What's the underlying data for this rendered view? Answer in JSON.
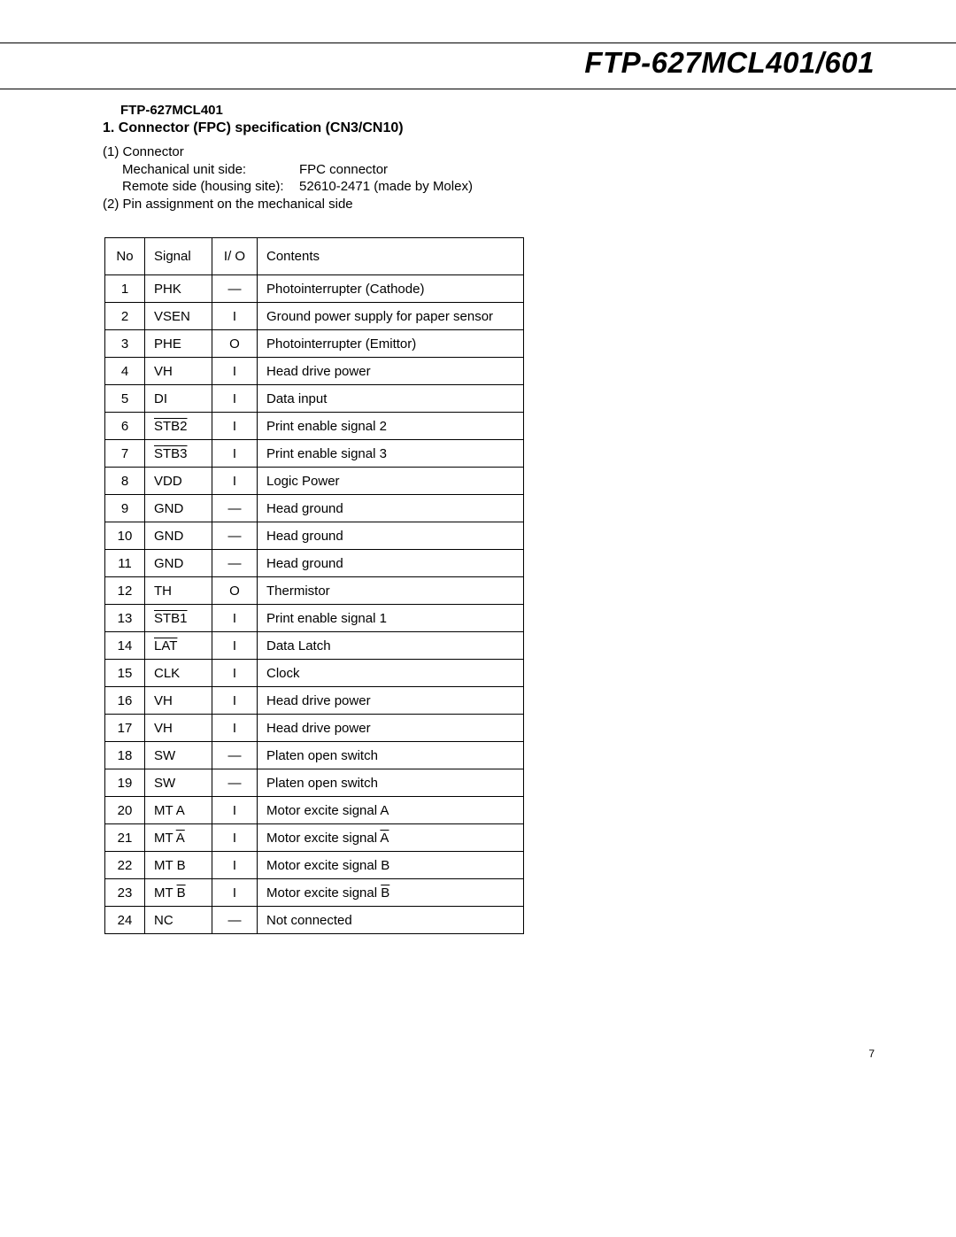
{
  "doc_title": "FTP-627MCL401/601",
  "model_label": "FTP-627MCL401",
  "section_title": "1. Connector (FPC) specification (CN3/CN10)",
  "connector_block": {
    "line1": "(1) Connector",
    "mech_label": "Mechanical unit side:",
    "mech_value": "FPC connector",
    "remote_label": "Remote side (housing site):",
    "remote_value": "52610-2471 (made by Molex)",
    "line2": "(2) Pin assignment on the mechanical side"
  },
  "table": {
    "headers": {
      "no": "No",
      "signal": "Signal",
      "io": "I/ O",
      "contents": "Contents"
    },
    "rows": [
      {
        "no": "1",
        "signal": "PHK",
        "sig_ovl": false,
        "io": "—",
        "contents": "Photointerrupter  (Cathode)",
        "cont_ovl": ""
      },
      {
        "no": "2",
        "signal": "VSEN",
        "sig_ovl": false,
        "io": "I",
        "contents": "Ground power supply for paper sensor",
        "cont_ovl": ""
      },
      {
        "no": "3",
        "signal": "PHE",
        "sig_ovl": false,
        "io": "O",
        "contents": "Photointerrupter  (Emittor)",
        "cont_ovl": ""
      },
      {
        "no": "4",
        "signal": "VH",
        "sig_ovl": false,
        "io": "I",
        "contents": "Head drive power",
        "cont_ovl": ""
      },
      {
        "no": "5",
        "signal": "DI",
        "sig_ovl": false,
        "io": "I",
        "contents": "Data input",
        "cont_ovl": ""
      },
      {
        "no": "6",
        "signal": "STB2",
        "sig_ovl": true,
        "io": "I",
        "contents": "Print enable signal 2",
        "cont_ovl": ""
      },
      {
        "no": "7",
        "signal": "STB3",
        "sig_ovl": true,
        "io": "I",
        "contents": "Print enable signal 3",
        "cont_ovl": ""
      },
      {
        "no": "8",
        "signal": "VDD",
        "sig_ovl": false,
        "io": "I",
        "contents": "Logic Power",
        "cont_ovl": ""
      },
      {
        "no": "9",
        "signal": "GND",
        "sig_ovl": false,
        "io": "—",
        "contents": "Head ground",
        "cont_ovl": ""
      },
      {
        "no": "10",
        "signal": "GND",
        "sig_ovl": false,
        "io": "—",
        "contents": "Head ground",
        "cont_ovl": ""
      },
      {
        "no": "11",
        "signal": "GND",
        "sig_ovl": false,
        "io": "—",
        "contents": "Head ground",
        "cont_ovl": ""
      },
      {
        "no": "12",
        "signal": "TH",
        "sig_ovl": false,
        "io": "O",
        "contents": "Thermistor",
        "cont_ovl": ""
      },
      {
        "no": "13",
        "signal": "STB1",
        "sig_ovl": true,
        "io": "I",
        "contents": "Print enable signal 1",
        "cont_ovl": ""
      },
      {
        "no": "14",
        "signal": "LAT",
        "sig_ovl": true,
        "io": "I",
        "contents": "Data Latch",
        "cont_ovl": ""
      },
      {
        "no": "15",
        "signal": "CLK",
        "sig_ovl": false,
        "io": "I",
        "contents": "Clock",
        "cont_ovl": ""
      },
      {
        "no": "16",
        "signal": "VH",
        "sig_ovl": false,
        "io": "I",
        "contents": "Head drive power",
        "cont_ovl": ""
      },
      {
        "no": "17",
        "signal": "VH",
        "sig_ovl": false,
        "io": "I",
        "contents": "Head drive power",
        "cont_ovl": ""
      },
      {
        "no": "18",
        "signal": "SW",
        "sig_ovl": false,
        "io": "—",
        "contents": "Platen open switch",
        "cont_ovl": ""
      },
      {
        "no": "19",
        "signal": "SW",
        "sig_ovl": false,
        "io": "—",
        "contents": "Platen open switch",
        "cont_ovl": ""
      },
      {
        "no": "20",
        "signal": "MT A",
        "sig_ovl": false,
        "io": "I",
        "contents": "Motor excite signal A",
        "cont_ovl": ""
      },
      {
        "no": "21",
        "signal": "MT |A",
        "sig_ovl": false,
        "io": "I",
        "contents": "Motor excite signal |A",
        "cont_ovl": ""
      },
      {
        "no": "22",
        "signal": "MT B",
        "sig_ovl": false,
        "io": "I",
        "contents": "Motor excite signal B",
        "cont_ovl": ""
      },
      {
        "no": "23",
        "signal": "MT |B",
        "sig_ovl": false,
        "io": "I",
        "contents": "Motor excite signal |B",
        "cont_ovl": ""
      },
      {
        "no": "24",
        "signal": "NC",
        "sig_ovl": false,
        "io": "—",
        "contents": "Not connected",
        "cont_ovl": ""
      }
    ]
  },
  "page_number": "7"
}
